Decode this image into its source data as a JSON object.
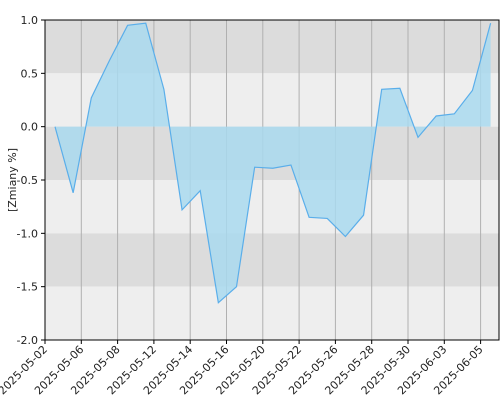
{
  "chart_data": {
    "type": "area",
    "y_label": "[Zmiany %]",
    "categories": [
      "2025-05-02",
      null,
      "2025-05-06",
      null,
      "2025-05-08",
      null,
      "2025-05-12",
      null,
      "2025-05-14",
      null,
      "2025-05-16",
      null,
      "2025-05-20",
      null,
      "2025-05-22",
      null,
      "2025-05-26",
      null,
      "2025-05-28",
      null,
      "2025-05-30",
      null,
      "2025-06-03",
      null,
      "2025-06-05"
    ],
    "values": [
      0.0,
      -0.62,
      0.27,
      0.62,
      0.95,
      0.97,
      0.35,
      -0.78,
      -0.6,
      -1.65,
      -1.5,
      -0.38,
      -0.39,
      -0.36,
      -0.85,
      -0.86,
      -1.03,
      -0.83,
      0.35,
      0.36,
      -0.1,
      0.1,
      0.12,
      0.34,
      0.97
    ],
    "color": "#5aaeea",
    "fill_color": "#a9d9ee",
    "ylim": [
      -2.0,
      1.0
    ],
    "yticks": [
      {
        "value": 1.0,
        "label": "1.0"
      },
      {
        "value": 0.5,
        "label": "0.5"
      },
      {
        "value": 0.0,
        "label": "0.0"
      },
      {
        "value": -0.5,
        "label": "-0.5"
      },
      {
        "value": -1.0,
        "label": "-1.0"
      },
      {
        "value": -1.5,
        "label": "-1.5"
      },
      {
        "value": -2.0,
        "label": "-2.0"
      }
    ],
    "band_colors": [
      "#dcdcdc",
      "#eeeeee"
    ],
    "grid": true
  }
}
